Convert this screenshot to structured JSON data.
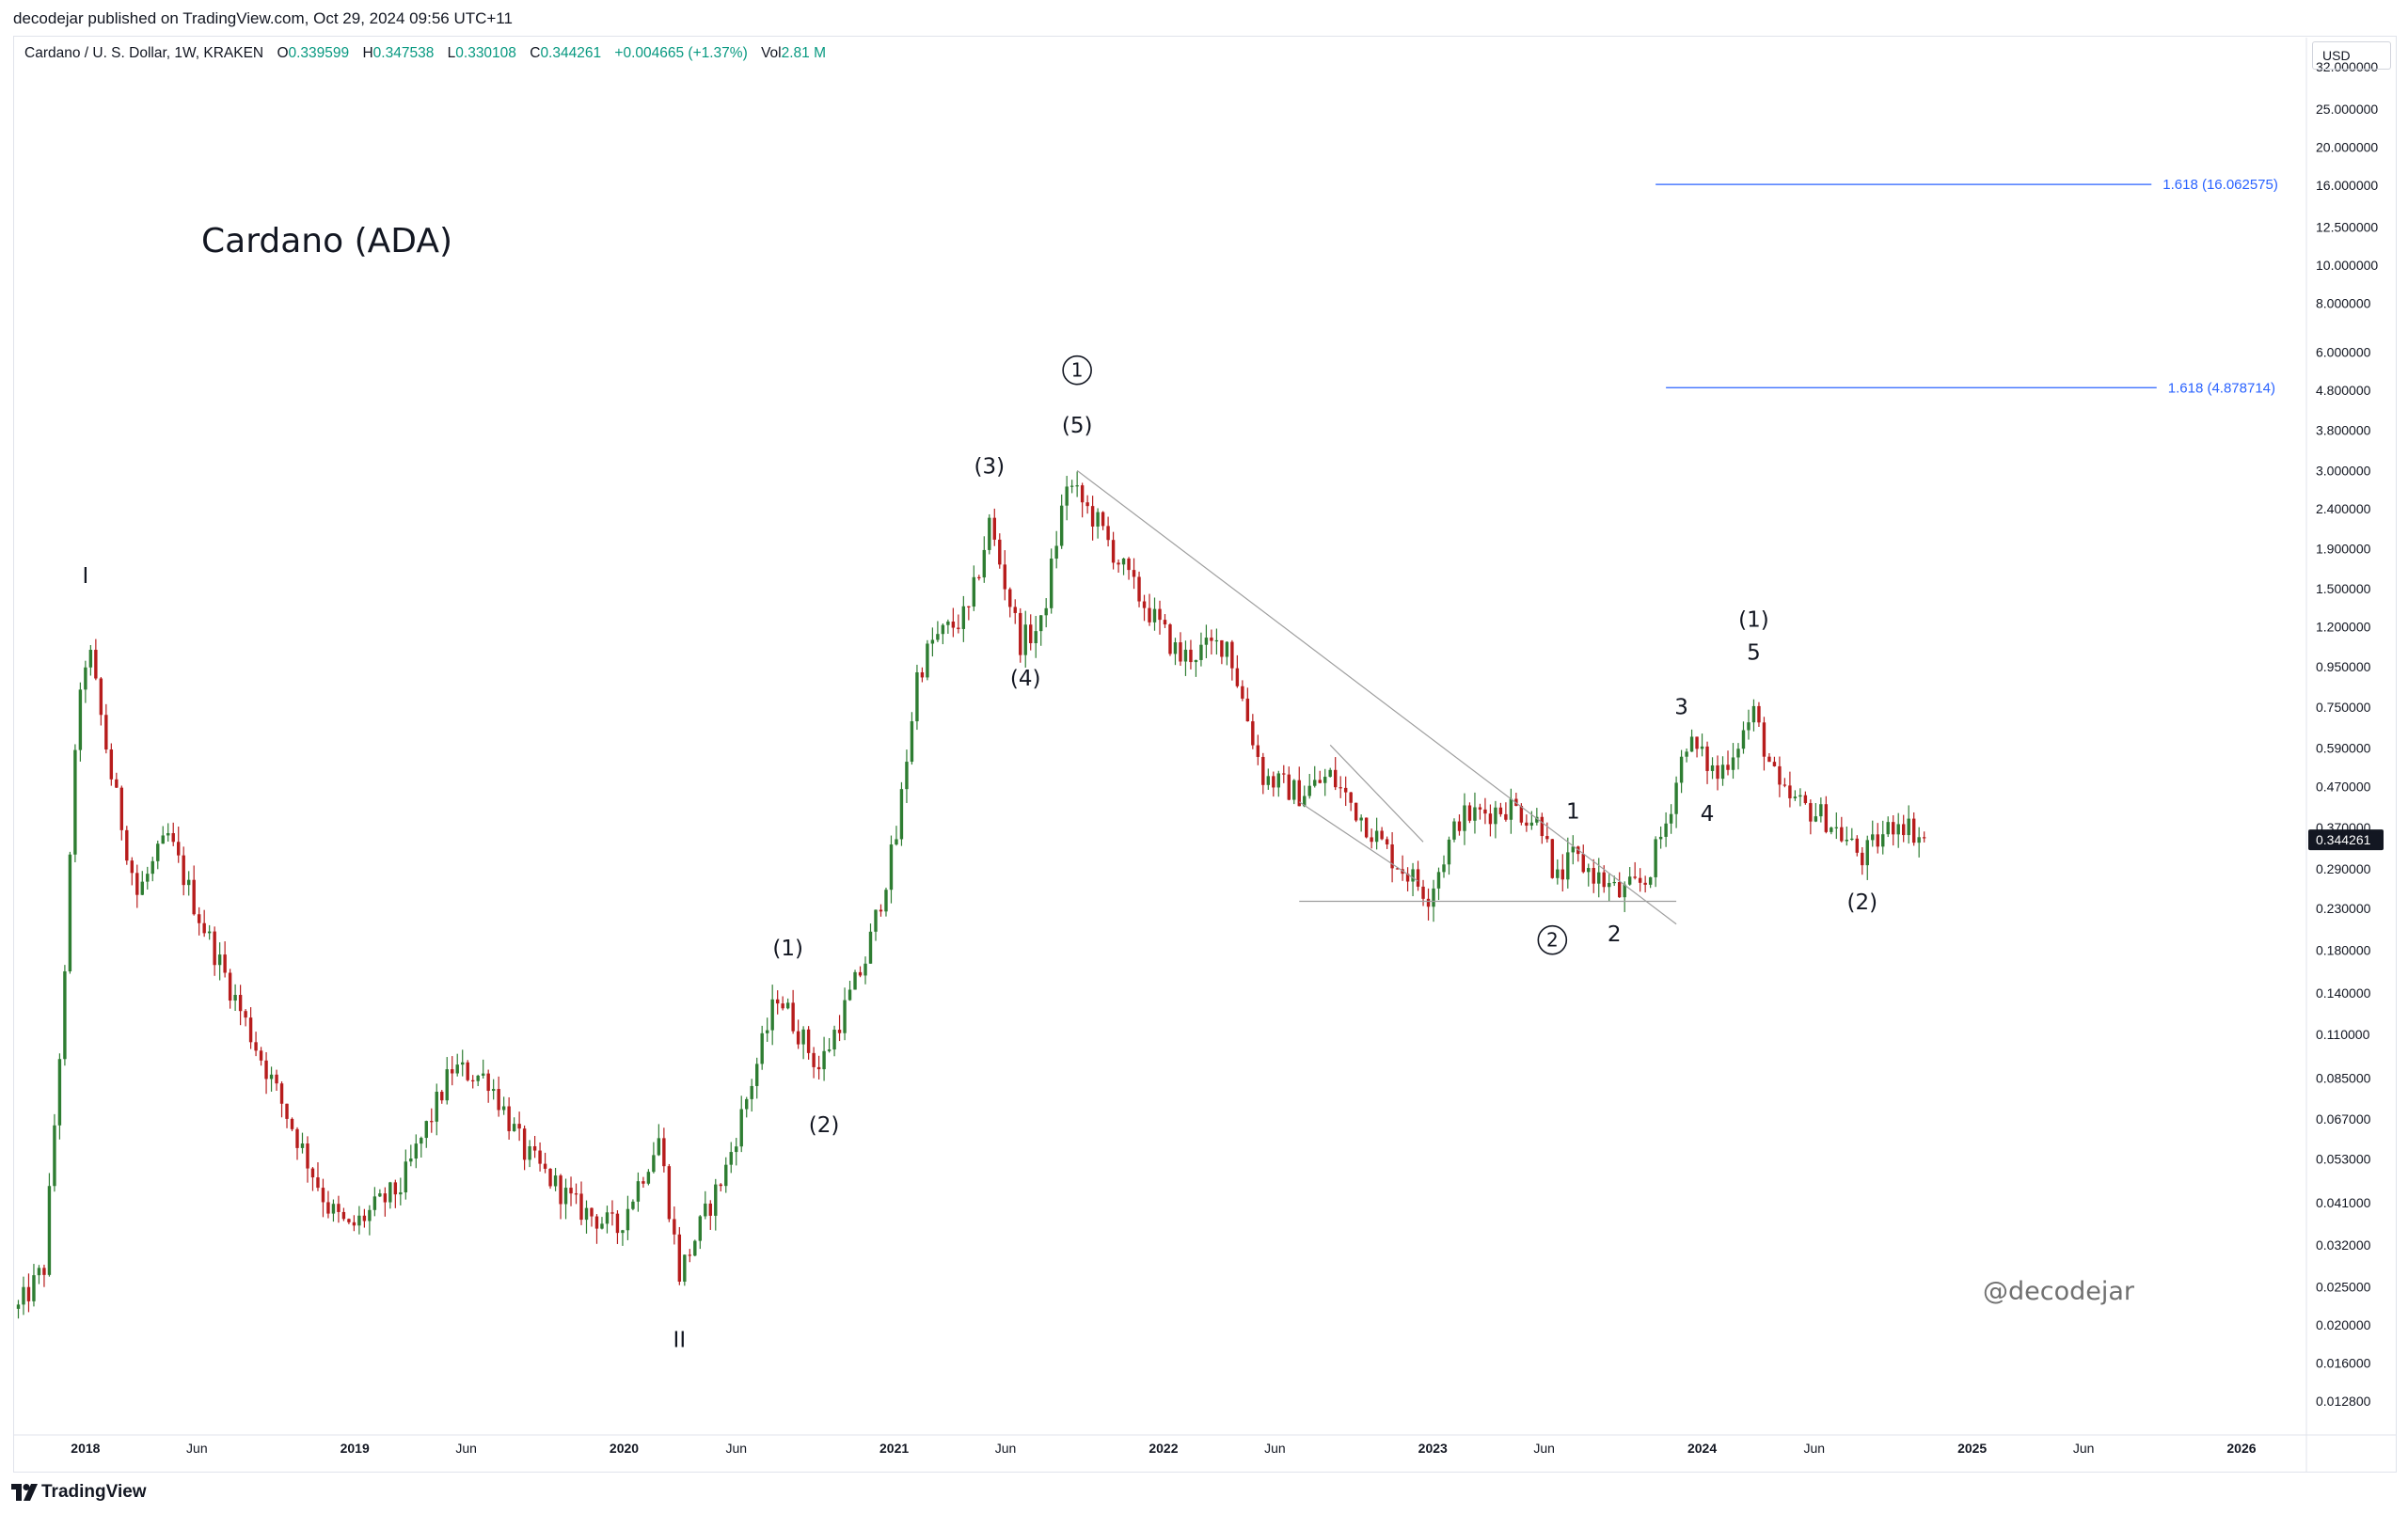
{
  "header": {
    "published_text": "decodejar published on TradingView.com, Oct 29, 2024 09:56 UTC+11"
  },
  "legend": {
    "symbol": "Cardano / U. S. Dollar, 1W, KRAKEN",
    "open_label": "O",
    "open_value": "0.339599",
    "high_label": "H",
    "high_value": "0.347538",
    "low_label": "L",
    "low_value": "0.330108",
    "close_label": "C",
    "close_value": "0.344261",
    "change_value": "+0.004665 (+1.37%)",
    "vol_label": "Vol",
    "vol_value": "2.81 M"
  },
  "price_axis": {
    "currency": "USD",
    "last_price": "0.344261"
  },
  "annotations": {
    "chart_title": "Cardano (ADA)",
    "watermark": "@decodejar"
  },
  "footer": {
    "brand": "TradingView"
  },
  "colors": {
    "up": "#089981",
    "down": "#f23645",
    "bull_candle": "#2e7d32",
    "bear_candle": "#b71c1c",
    "fib_line": "#2962ff",
    "trendline": "#9e9e9e",
    "text": "#131722"
  },
  "chart_data": {
    "type": "candlestick",
    "scale": "log",
    "ylim": [
      0.0105,
      38
    ],
    "xlim": [
      "2017-09-25",
      "2026-03-30"
    ],
    "y_ticks": [
      "32.000000",
      "25.000000",
      "20.000000",
      "16.000000",
      "12.500000",
      "10.000000",
      "8.000000",
      "6.000000",
      "4.800000",
      "3.800000",
      "3.000000",
      "2.400000",
      "1.900000",
      "1.500000",
      "1.200000",
      "0.950000",
      "0.750000",
      "0.590000",
      "0.470000",
      "0.370000",
      "0.290000",
      "0.230000",
      "0.180000",
      "0.140000",
      "0.110000",
      "0.085000",
      "0.067000",
      "0.053000",
      "0.041000",
      "0.032000",
      "0.025000",
      "0.020000",
      "0.016000",
      "0.012800"
    ],
    "x_ticks": [
      {
        "label": "2018",
        "date": "2018-01-01"
      },
      {
        "label": "Jun",
        "date": "2018-06-01"
      },
      {
        "label": "2019",
        "date": "2019-01-01"
      },
      {
        "label": "Jun",
        "date": "2019-06-01"
      },
      {
        "label": "2020",
        "date": "2020-01-01"
      },
      {
        "label": "Jun",
        "date": "2020-06-01"
      },
      {
        "label": "2021",
        "date": "2021-01-01"
      },
      {
        "label": "Jun",
        "date": "2021-06-01"
      },
      {
        "label": "2022",
        "date": "2022-01-01"
      },
      {
        "label": "Jun",
        "date": "2022-06-01"
      },
      {
        "label": "2023",
        "date": "2023-01-01"
      },
      {
        "label": "Jun",
        "date": "2023-06-01"
      },
      {
        "label": "2024",
        "date": "2024-01-01"
      },
      {
        "label": "Jun",
        "date": "2024-06-01"
      },
      {
        "label": "2025",
        "date": "2025-01-01"
      },
      {
        "label": "Jun",
        "date": "2025-06-01"
      },
      {
        "label": "2026",
        "date": "2026-01-01"
      }
    ],
    "price_anchors": [
      {
        "date": "2017-10-02",
        "price": 0.022
      },
      {
        "date": "2017-11-06",
        "price": 0.028
      },
      {
        "date": "2017-12-04",
        "price": 0.15
      },
      {
        "date": "2017-12-18",
        "price": 0.6
      },
      {
        "date": "2018-01-04",
        "price": 1.1
      },
      {
        "date": "2018-02-05",
        "price": 0.5
      },
      {
        "date": "2018-03-12",
        "price": 0.25
      },
      {
        "date": "2018-04-23",
        "price": 0.35
      },
      {
        "date": "2018-06-04",
        "price": 0.22
      },
      {
        "date": "2018-08-13",
        "price": 0.11
      },
      {
        "date": "2018-09-03",
        "price": 0.09
      },
      {
        "date": "2018-11-26",
        "price": 0.04
      },
      {
        "date": "2018-12-24",
        "price": 0.035
      },
      {
        "date": "2019-03-04",
        "price": 0.045
      },
      {
        "date": "2019-05-13",
        "price": 0.09
      },
      {
        "date": "2019-07-01",
        "price": 0.085
      },
      {
        "date": "2019-08-19",
        "price": 0.055
      },
      {
        "date": "2019-10-28",
        "price": 0.04
      },
      {
        "date": "2019-12-23",
        "price": 0.035
      },
      {
        "date": "2020-02-17",
        "price": 0.06
      },
      {
        "date": "2020-03-16",
        "price": 0.027
      },
      {
        "date": "2020-05-18",
        "price": 0.05
      },
      {
        "date": "2020-07-27",
        "price": 0.14
      },
      {
        "date": "2020-09-21",
        "price": 0.09
      },
      {
        "date": "2020-11-23",
        "price": 0.17
      },
      {
        "date": "2021-01-04",
        "price": 0.35
      },
      {
        "date": "2021-02-01",
        "price": 0.9
      },
      {
        "date": "2021-02-22",
        "price": 1.1
      },
      {
        "date": "2021-04-12",
        "price": 1.3
      },
      {
        "date": "2021-05-10",
        "price": 2.2
      },
      {
        "date": "2021-06-21",
        "price": 1.1
      },
      {
        "date": "2021-07-19",
        "price": 1.2
      },
      {
        "date": "2021-08-23",
        "price": 2.8
      },
      {
        "date": "2021-10-04",
        "price": 2.2
      },
      {
        "date": "2021-11-22",
        "price": 1.5
      },
      {
        "date": "2022-01-24",
        "price": 1.0
      },
      {
        "date": "2022-03-28",
        "price": 1.1
      },
      {
        "date": "2022-05-16",
        "price": 0.5
      },
      {
        "date": "2022-07-04",
        "price": 0.45
      },
      {
        "date": "2022-08-15",
        "price": 0.5
      },
      {
        "date": "2022-11-07",
        "price": 0.31
      },
      {
        "date": "2022-12-26",
        "price": 0.25
      },
      {
        "date": "2023-02-06",
        "price": 0.39
      },
      {
        "date": "2023-04-17",
        "price": 0.42
      },
      {
        "date": "2023-06-05",
        "price": 0.37
      },
      {
        "date": "2023-06-12",
        "price": 0.26
      },
      {
        "date": "2023-07-10",
        "price": 0.31
      },
      {
        "date": "2023-09-11",
        "price": 0.25
      },
      {
        "date": "2023-10-16",
        "price": 0.27
      },
      {
        "date": "2023-11-13",
        "price": 0.38
      },
      {
        "date": "2023-12-11",
        "price": 0.62
      },
      {
        "date": "2024-01-22",
        "price": 0.5
      },
      {
        "date": "2024-03-11",
        "price": 0.72
      },
      {
        "date": "2024-04-15",
        "price": 0.45
      },
      {
        "date": "2024-06-17",
        "price": 0.39
      },
      {
        "date": "2024-08-05",
        "price": 0.31
      },
      {
        "date": "2024-09-23",
        "price": 0.39
      },
      {
        "date": "2024-10-28",
        "price": 0.344
      }
    ],
    "horizontal_lines": [
      {
        "price": 16.062575,
        "label": "1.618 (16.062575)",
        "from": "2023-10-30",
        "to": "2025-09-01"
      },
      {
        "price": 4.878714,
        "label": "1.618 (4.878714)",
        "from": "2023-11-13",
        "to": "2025-09-08"
      },
      {
        "price": 0.24,
        "label": "",
        "from": "2022-07-04",
        "to": "2023-11-27"
      }
    ],
    "trendlines": [
      {
        "from": {
          "date": "2021-09-06",
          "price": 3.0
        },
        "to": {
          "date": "2023-11-27",
          "price": 0.21
        }
      },
      {
        "from": {
          "date": "2022-07-04",
          "price": 0.43
        },
        "to": {
          "date": "2022-12-12",
          "price": 0.27
        }
      },
      {
        "from": {
          "date": "2022-08-15",
          "price": 0.6
        },
        "to": {
          "date": "2022-12-19",
          "price": 0.34
        }
      }
    ],
    "wave_labels": [
      {
        "text": "I",
        "date": "2018-01-01",
        "price": 1.55,
        "circled": false
      },
      {
        "text": "II",
        "date": "2020-03-16",
        "price": 0.0176,
        "circled": false
      },
      {
        "text": "(1)",
        "date": "2020-08-10",
        "price": 0.175,
        "circled": false
      },
      {
        "text": "(2)",
        "date": "2020-09-28",
        "price": 0.062,
        "circled": false
      },
      {
        "text": "(3)",
        "date": "2021-05-10",
        "price": 2.95,
        "circled": false
      },
      {
        "text": "(4)",
        "date": "2021-06-28",
        "price": 0.85,
        "circled": false
      },
      {
        "text": "(5)",
        "date": "2021-09-06",
        "price": 3.75,
        "circled": false
      },
      {
        "text": "1",
        "date": "2021-09-06",
        "price": 5.2,
        "circled": true
      },
      {
        "text": "2",
        "date": "2023-06-12",
        "price": 0.184,
        "circled": true
      },
      {
        "text": "1",
        "date": "2023-07-10",
        "price": 0.39,
        "circled": false
      },
      {
        "text": "2",
        "date": "2023-09-04",
        "price": 0.19,
        "circled": false
      },
      {
        "text": "3",
        "date": "2023-12-04",
        "price": 0.72,
        "circled": false
      },
      {
        "text": "4",
        "date": "2024-01-08",
        "price": 0.385,
        "circled": false
      },
      {
        "text": "(1)",
        "date": "2024-03-11",
        "price": 1.2,
        "circled": false
      },
      {
        "text": "5",
        "date": "2024-03-11",
        "price": 0.99,
        "circled": false
      },
      {
        "text": "(2)",
        "date": "2024-08-05",
        "price": 0.229,
        "circled": false
      }
    ]
  }
}
